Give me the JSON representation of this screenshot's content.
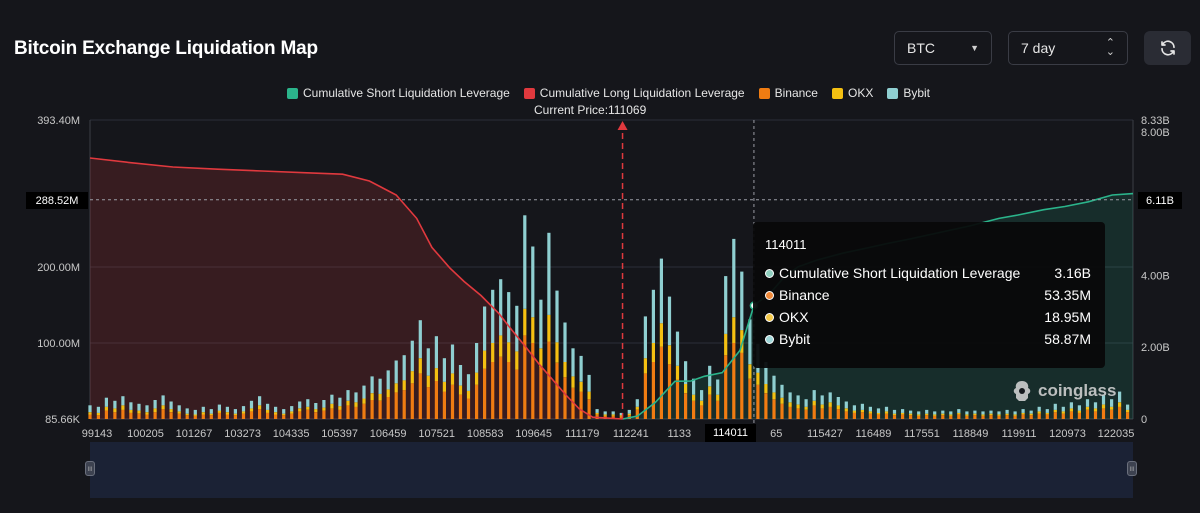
{
  "header": {
    "title": "Bitcoin Exchange Liquidation Map"
  },
  "controls": {
    "symbol": "BTC",
    "range": "7 day",
    "icons": {
      "symbol_caret": "caret-down-icon",
      "range_stepper": "up-down-icon",
      "refresh": "refresh-icon"
    }
  },
  "legend": [
    {
      "label": "Cumulative Short Liquidation Leverage",
      "color": "#2bb48b"
    },
    {
      "label": "Cumulative Long Liquidation Leverage",
      "color": "#e0393e"
    },
    {
      "label": "Binance",
      "color": "#f07c12"
    },
    {
      "label": "OKX",
      "color": "#f4c012"
    },
    {
      "label": "Bybit",
      "color": "#8fcfd1"
    }
  ],
  "current_price_label": "Current Price:111069",
  "tooltip": {
    "title": "114011",
    "rows": [
      {
        "label": "Cumulative Short Liquidation Leverage",
        "value": "3.16B",
        "color": "#8fcfbf"
      },
      {
        "label": "Binance",
        "value": "53.35M",
        "color": "#f08a3a"
      },
      {
        "label": "OKX",
        "value": "18.95M",
        "color": "#f4c94a"
      },
      {
        "label": "Bybit",
        "value": "58.87M",
        "color": "#9fd7d9"
      }
    ]
  },
  "crosshair": {
    "x_label": "114011",
    "y_left_label": "288.52M",
    "y_right_label": "6.11B"
  },
  "watermark": {
    "text": "coinglass",
    "icon": "coinglass-logo-icon"
  },
  "chart_data": {
    "type": "bar",
    "title": "Bitcoin Exchange Liquidation Map",
    "x_tick_labels": [
      "99143",
      "100205",
      "101267",
      "103273",
      "104335",
      "105397",
      "106459",
      "107521",
      "108583",
      "109645",
      "111179",
      "112241",
      "1133",
      "114011",
      "65",
      "115427",
      "116489",
      "117551",
      "118849",
      "119911",
      "120973",
      "122035"
    ],
    "x_range": [
      99143,
      122500
    ],
    "left_axis": {
      "ticks": [
        "393.40M",
        "200.00M",
        "100.00M",
        "85.66K"
      ],
      "tick_values": [
        393.4,
        200,
        100,
        0
      ],
      "ylim": [
        0,
        393.4
      ],
      "unit": "M"
    },
    "right_axis": {
      "ticks": [
        "8.33B",
        "8.00B",
        "4.00B",
        "2.00B",
        "0"
      ],
      "tick_values": [
        8.33,
        8.0,
        4.0,
        2.0,
        0
      ],
      "ylim": [
        0,
        8.33
      ],
      "unit": "B"
    },
    "current_price": 111069,
    "grid": true,
    "stacked_series_order": [
      "Binance",
      "OKX",
      "Bybit"
    ],
    "bars": [
      [
        99143,
        6,
        3,
        9
      ],
      [
        99330,
        5,
        3,
        8
      ],
      [
        99510,
        11,
        5,
        12
      ],
      [
        99700,
        9,
        5,
        10
      ],
      [
        99880,
        12,
        6,
        12
      ],
      [
        100060,
        8,
        4,
        10
      ],
      [
        100240,
        7,
        4,
        9
      ],
      [
        100420,
        6,
        3,
        9
      ],
      [
        100600,
        9,
        5,
        11
      ],
      [
        100780,
        13,
        5,
        13
      ],
      [
        100960,
        9,
        4,
        10
      ],
      [
        101140,
        7,
        3,
        8
      ],
      [
        101320,
        5,
        2,
        7
      ],
      [
        101500,
        4,
        2,
        6
      ],
      [
        101680,
        6,
        3,
        7
      ],
      [
        101860,
        5,
        2,
        6
      ],
      [
        102040,
        8,
        3,
        8
      ],
      [
        102220,
        6,
        3,
        7
      ],
      [
        102400,
        5,
        2,
        6
      ],
      [
        102580,
        7,
        3,
        7
      ],
      [
        102760,
        10,
        4,
        10
      ],
      [
        102940,
        13,
        5,
        12
      ],
      [
        103120,
        8,
        4,
        8
      ],
      [
        103300,
        6,
        3,
        7
      ],
      [
        103480,
        5,
        2,
        6
      ],
      [
        103660,
        7,
        3,
        7
      ],
      [
        103840,
        10,
        4,
        9
      ],
      [
        104020,
        12,
        4,
        10
      ],
      [
        104200,
        9,
        4,
        8
      ],
      [
        104380,
        11,
        4,
        10
      ],
      [
        104560,
        14,
        6,
        12
      ],
      [
        104740,
        12,
        5,
        11
      ],
      [
        104920,
        18,
        6,
        14
      ],
      [
        105100,
        16,
        6,
        13
      ],
      [
        105280,
        20,
        7,
        17
      ],
      [
        105460,
        25,
        9,
        22
      ],
      [
        105640,
        24,
        9,
        20
      ],
      [
        105820,
        29,
        10,
        25
      ],
      [
        106000,
        35,
        12,
        30
      ],
      [
        106180,
        38,
        13,
        33
      ],
      [
        106360,
        47,
        16,
        40
      ],
      [
        106540,
        60,
        20,
        50
      ],
      [
        106720,
        42,
        15,
        36
      ],
      [
        106900,
        50,
        17,
        42
      ],
      [
        107080,
        36,
        13,
        31
      ],
      [
        107260,
        45,
        15,
        38
      ],
      [
        107440,
        32,
        12,
        27
      ],
      [
        107620,
        27,
        10,
        22
      ],
      [
        107800,
        45,
        16,
        39
      ],
      [
        107980,
        66,
        24,
        58
      ],
      [
        108160,
        75,
        25,
        70
      ],
      [
        108340,
        82,
        28,
        74
      ],
      [
        108520,
        75,
        26,
        66
      ],
      [
        108700,
        65,
        24,
        60
      ],
      [
        108880,
        110,
        35,
        123
      ],
      [
        109060,
        100,
        34,
        93
      ],
      [
        109240,
        68,
        25,
        64
      ],
      [
        109420,
        102,
        35,
        108
      ],
      [
        109600,
        74,
        27,
        68
      ],
      [
        109780,
        55,
        20,
        52
      ],
      [
        109960,
        41,
        15,
        37
      ],
      [
        110140,
        36,
        13,
        34
      ],
      [
        110320,
        26,
        10,
        22
      ],
      [
        110500,
        6,
        2,
        5
      ],
      [
        110680,
        4,
        2,
        4
      ],
      [
        110860,
        4,
        2,
        4
      ],
      [
        111040,
        3,
        2,
        3
      ],
      [
        111220,
        5,
        2,
        5
      ],
      [
        111400,
        12,
        4,
        10
      ],
      [
        111580,
        60,
        20,
        55
      ],
      [
        111760,
        75,
        25,
        70
      ],
      [
        111940,
        95,
        31,
        85
      ],
      [
        112120,
        72,
        25,
        64
      ],
      [
        112300,
        52,
        18,
        45
      ],
      [
        112480,
        34,
        12,
        30
      ],
      [
        112660,
        24,
        8,
        21
      ],
      [
        112840,
        18,
        6,
        14
      ],
      [
        113020,
        32,
        11,
        27
      ],
      [
        113200,
        24,
        8,
        20
      ],
      [
        113380,
        84,
        28,
        76
      ],
      [
        113560,
        100,
        34,
        103
      ],
      [
        113740,
        87,
        30,
        77
      ],
      [
        113920,
        53,
        19,
        59
      ],
      [
        114100,
        45,
        16,
        38
      ],
      [
        114280,
        34,
        12,
        29
      ],
      [
        114460,
        26,
        9,
        22
      ],
      [
        114640,
        20,
        8,
        17
      ],
      [
        114820,
        16,
        6,
        13
      ],
      [
        115000,
        14,
        5,
        12
      ],
      [
        115180,
        12,
        4,
        10
      ],
      [
        115360,
        18,
        6,
        14
      ],
      [
        115540,
        14,
        5,
        12
      ],
      [
        115720,
        16,
        6,
        13
      ],
      [
        115900,
        13,
        5,
        11
      ],
      [
        116080,
        10,
        4,
        9
      ],
      [
        116260,
        8,
        3,
        7
      ],
      [
        116440,
        9,
        3,
        8
      ],
      [
        116620,
        7,
        3,
        6
      ],
      [
        116800,
        6,
        2,
        6
      ],
      [
        116980,
        7,
        3,
        6
      ],
      [
        117160,
        5,
        2,
        5
      ],
      [
        117340,
        6,
        2,
        5
      ],
      [
        117520,
        5,
        2,
        4
      ],
      [
        117700,
        4,
        2,
        4
      ],
      [
        117880,
        5,
        2,
        5
      ],
      [
        118060,
        4,
        2,
        4
      ],
      [
        118240,
        5,
        2,
        4
      ],
      [
        118420,
        4,
        2,
        4
      ],
      [
        118600,
        6,
        2,
        5
      ],
      [
        118780,
        4,
        2,
        4
      ],
      [
        118960,
        5,
        2,
        4
      ],
      [
        119140,
        4,
        2,
        4
      ],
      [
        119320,
        5,
        2,
        4
      ],
      [
        119500,
        4,
        2,
        4
      ],
      [
        119680,
        5,
        2,
        5
      ],
      [
        119860,
        4,
        2,
        4
      ],
      [
        120040,
        6,
        2,
        5
      ],
      [
        120220,
        5,
        2,
        4
      ],
      [
        120400,
        7,
        3,
        6
      ],
      [
        120580,
        6,
        2,
        5
      ],
      [
        120760,
        9,
        3,
        8
      ],
      [
        120940,
        7,
        3,
        6
      ],
      [
        121120,
        10,
        4,
        8
      ],
      [
        121300,
        8,
        3,
        7
      ],
      [
        121480,
        12,
        4,
        10
      ],
      [
        121660,
        10,
        4,
        8
      ],
      [
        121840,
        14,
        5,
        12
      ],
      [
        122020,
        12,
        4,
        10
      ],
      [
        122200,
        16,
        6,
        14
      ],
      [
        122380,
        9,
        3,
        7
      ]
    ],
    "cumulative_long": [
      [
        99143,
        7.27
      ],
      [
        100000,
        7.15
      ],
      [
        101000,
        7.02
      ],
      [
        102000,
        6.96
      ],
      [
        103000,
        6.91
      ],
      [
        104000,
        6.86
      ],
      [
        104800,
        6.82
      ],
      [
        105400,
        6.63
      ],
      [
        106000,
        6.24
      ],
      [
        106459,
        5.59
      ],
      [
        106800,
        4.78
      ],
      [
        107200,
        4.21
      ],
      [
        107521,
        3.83
      ],
      [
        107900,
        3.44
      ],
      [
        108300,
        2.94
      ],
      [
        108583,
        2.49
      ],
      [
        108900,
        2.01
      ],
      [
        109200,
        1.53
      ],
      [
        109500,
        1.1
      ],
      [
        109800,
        0.67
      ],
      [
        110100,
        0.28
      ],
      [
        110400,
        0.05
      ],
      [
        111069,
        0
      ]
    ],
    "cumulative_short": [
      [
        111069,
        0
      ],
      [
        111400,
        0.08
      ],
      [
        111800,
        0.46
      ],
      [
        112241,
        1.05
      ],
      [
        112600,
        1.06
      ],
      [
        112900,
        1.19
      ],
      [
        113300,
        1.29
      ],
      [
        113700,
        1.91
      ],
      [
        114011,
        3.16
      ],
      [
        114400,
        3.54
      ],
      [
        114700,
        3.97
      ],
      [
        115000,
        4.24
      ],
      [
        115427,
        4.43
      ],
      [
        116000,
        4.62
      ],
      [
        116489,
        4.75
      ],
      [
        117000,
        4.89
      ],
      [
        117551,
        5.03
      ],
      [
        118000,
        5.15
      ],
      [
        118849,
        5.38
      ],
      [
        119500,
        5.59
      ],
      [
        119911,
        5.68
      ],
      [
        120500,
        5.83
      ],
      [
        120973,
        5.92
      ],
      [
        121500,
        6.05
      ],
      [
        122035,
        6.24
      ],
      [
        122500,
        6.28
      ]
    ]
  }
}
